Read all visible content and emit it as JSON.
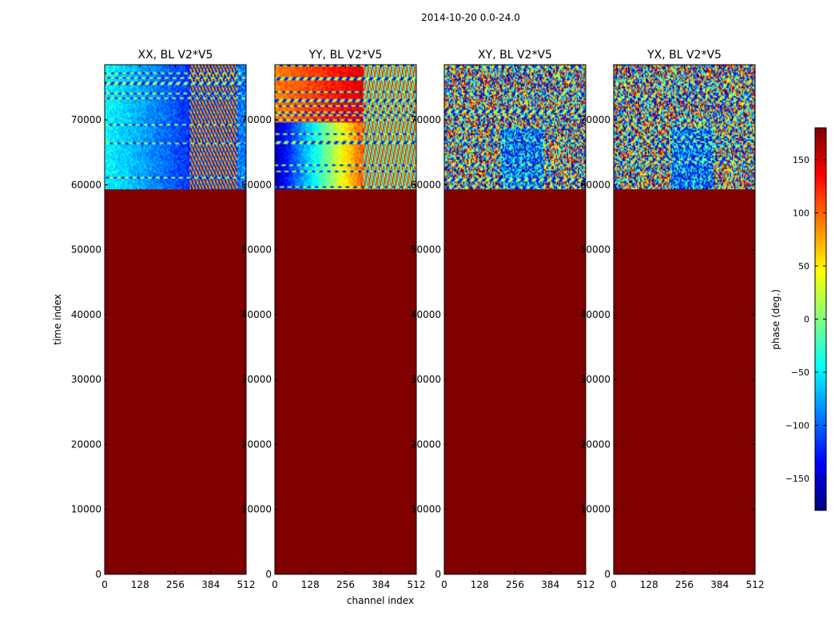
{
  "figure_title": "2014-10-20 0.0-24.0",
  "chart_data": {
    "type": "heatmap",
    "suptitle": "2014-10-20 0.0-24.0",
    "xlabel": "channel index",
    "ylabel": "time index",
    "xlim": [
      0,
      512
    ],
    "ylim": [
      0,
      78500
    ],
    "x_ticks": [
      0,
      128,
      256,
      384,
      512
    ],
    "x_tick_labels": [
      "0",
      "128",
      "256",
      "384",
      "512"
    ],
    "y_ticks": [
      0,
      10000,
      20000,
      30000,
      40000,
      50000,
      60000,
      70000
    ],
    "y_tick_labels": [
      "0",
      "10000",
      "20000",
      "30000",
      "40000",
      "50000",
      "60000",
      "70000"
    ],
    "flagged_below_time_index": 59300,
    "panels": [
      {
        "title": "XX, BL V2*V5",
        "pattern": "xx"
      },
      {
        "title": "YY, BL V2*V5",
        "pattern": "yy"
      },
      {
        "title": "XY, BL V2*V5",
        "pattern": "noise"
      },
      {
        "title": "YX, BL V2*V5",
        "pattern": "noise"
      }
    ],
    "colorbar": {
      "label": "phase (deg.)",
      "colormap": "jet",
      "range": [
        -180,
        180
      ],
      "ticks": [
        150,
        100,
        50,
        0,
        -50,
        -100,
        -150
      ],
      "tick_labels": [
        "150",
        "100",
        "50",
        "0",
        "−50",
        "−100",
        "−150"
      ]
    }
  }
}
